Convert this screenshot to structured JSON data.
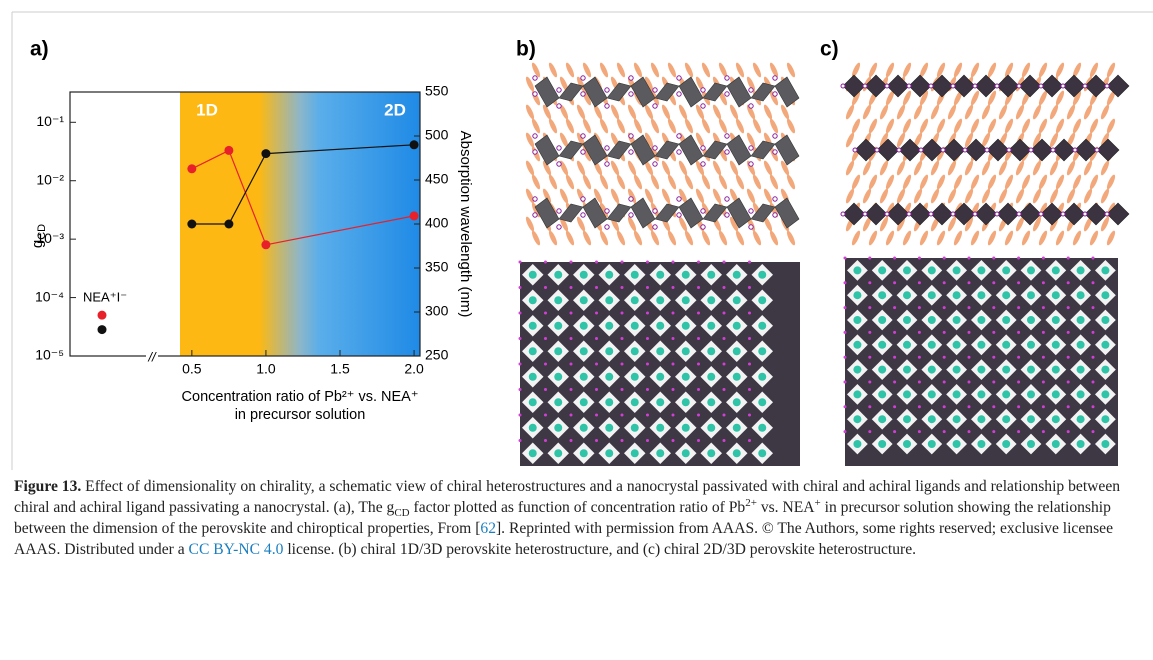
{
  "panels": {
    "a": "a)",
    "b": "b)",
    "c": "c)"
  },
  "chart_data": {
    "type": "line",
    "y_label": "g",
    "y_label_subscript": "CD",
    "y2_label": "Absorption wavelength (nm)",
    "x_label": [
      "Concentration ratio of Pb²⁺ vs. NEA⁺",
      "in precursor solution"
    ],
    "regions": [
      "1D",
      "2D"
    ],
    "break_mark": "//",
    "log_y": true,
    "xlim": [
      0.42,
      2.04
    ],
    "xticks": [
      0.5,
      {
        "value": 1,
        "label": "1.0"
      },
      1.5,
      {
        "value": 2,
        "label": "2.0"
      }
    ],
    "ylim": [
      1e-05,
      0.33
    ],
    "yticks": [
      {
        "value": 0.1,
        "label": "10⁻¹"
      },
      {
        "value": 0.01,
        "label": "10⁻²"
      },
      {
        "value": 0.001,
        "label": "10⁻³"
      },
      {
        "value": 0.0001,
        "label": "10⁻⁴"
      },
      {
        "value": 1e-05,
        "label": "10⁻⁵"
      }
    ],
    "y2lim": [
      250,
      550
    ],
    "y2ticks": [
      250,
      300,
      350,
      400,
      450,
      500,
      550
    ],
    "x": [
      0.5,
      0.75,
      1.0,
      2.0
    ],
    "series": [
      {
        "color": "#e8202a",
        "values": [
          0.016,
          0.033,
          0.0008,
          0.0025
        ]
      },
      {
        "color": "#111111",
        "axis": "y2",
        "values": [
          400,
          400,
          480,
          490
        ]
      }
    ],
    "reference": {
      "label": "NEA⁺I⁻",
      "values": [
        5e-05,
        280
      ]
    }
  },
  "caption": [
    {
      "text": "Figure 13.",
      "style": "bold"
    },
    {
      "text": " Effect of dimensionality on chirality, a schematic view of chiral heterostructures and a nanocrystal passivated with chiral and achiral ligands and relationship between chiral and achiral ligand passivating a nanocrystal. (a), The g"
    },
    {
      "text": "CD",
      "style": "sub"
    },
    {
      "text": " factor plotted as function of concentration ratio of Pb"
    },
    {
      "text": "2+",
      "style": "sup"
    },
    {
      "text": " vs. NEA"
    },
    {
      "text": "+",
      "style": "sup"
    },
    {
      "text": " in precursor solution showing the relationship between the dimension of the perovskite and chiroptical properties, From ["
    },
    {
      "text": "62",
      "style": "link"
    },
    {
      "text": "]. Reprinted with permission from AAAS. © The Authors, some rights reserved; exclusive licensee AAAS. Distributed under a "
    },
    {
      "text": "CC BY-NC 4.0",
      "style": "link"
    },
    {
      "text": " license. (b) chiral 1D/3D perovskite heterostructure, and (c) chiral 2D/3D perovskite heterostructure."
    }
  ]
}
